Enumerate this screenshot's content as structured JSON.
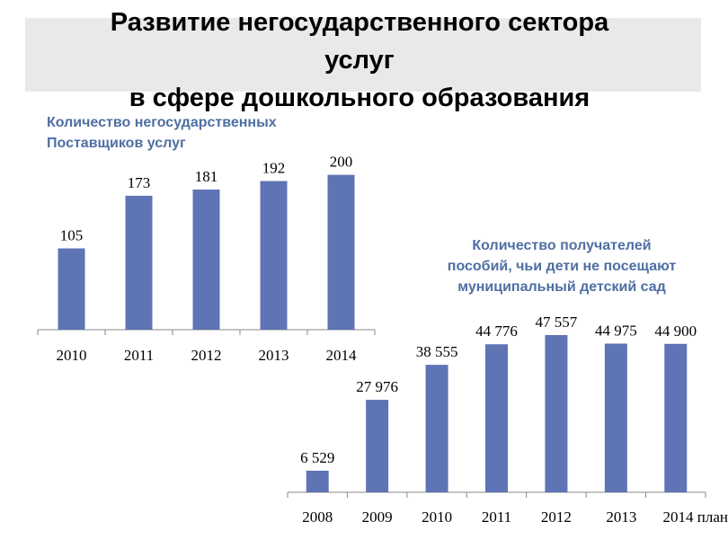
{
  "page": {
    "title_line1": "Развитие негосударственного сектора",
    "title_line2": "услуг",
    "title_line3": "в сфере дошкольного образования"
  },
  "chart_data": [
    {
      "type": "bar",
      "title_line1": "Количество негосударственных",
      "title_line2": "Поставщиков услуг",
      "categories": [
        "2010",
        "2011",
        "2012",
        "2013",
        "2014"
      ],
      "values": [
        105,
        173,
        181,
        192,
        200
      ],
      "value_labels": [
        "105",
        "173",
        "181",
        "192",
        "200"
      ],
      "ylim": [
        0,
        210
      ],
      "grid": false,
      "color": "#5f74b5"
    },
    {
      "type": "bar",
      "title_line1": "Количество получателей",
      "title_line2": "пособий, чьи дети не посещают",
      "title_line3": "муниципальный детский сад",
      "categories": [
        "2008",
        "2009",
        "2010",
        "2011",
        "2012",
        "2013",
        "2014 план"
      ],
      "values": [
        6529,
        27976,
        38555,
        44776,
        47557,
        44975,
        44900
      ],
      "value_labels": [
        "6 529",
        "27 976",
        "38 555",
        "44 776",
        "47 557",
        "44 975",
        "44 900"
      ],
      "ylim": [
        0,
        50000
      ],
      "grid": false,
      "color": "#5f74b5"
    }
  ]
}
